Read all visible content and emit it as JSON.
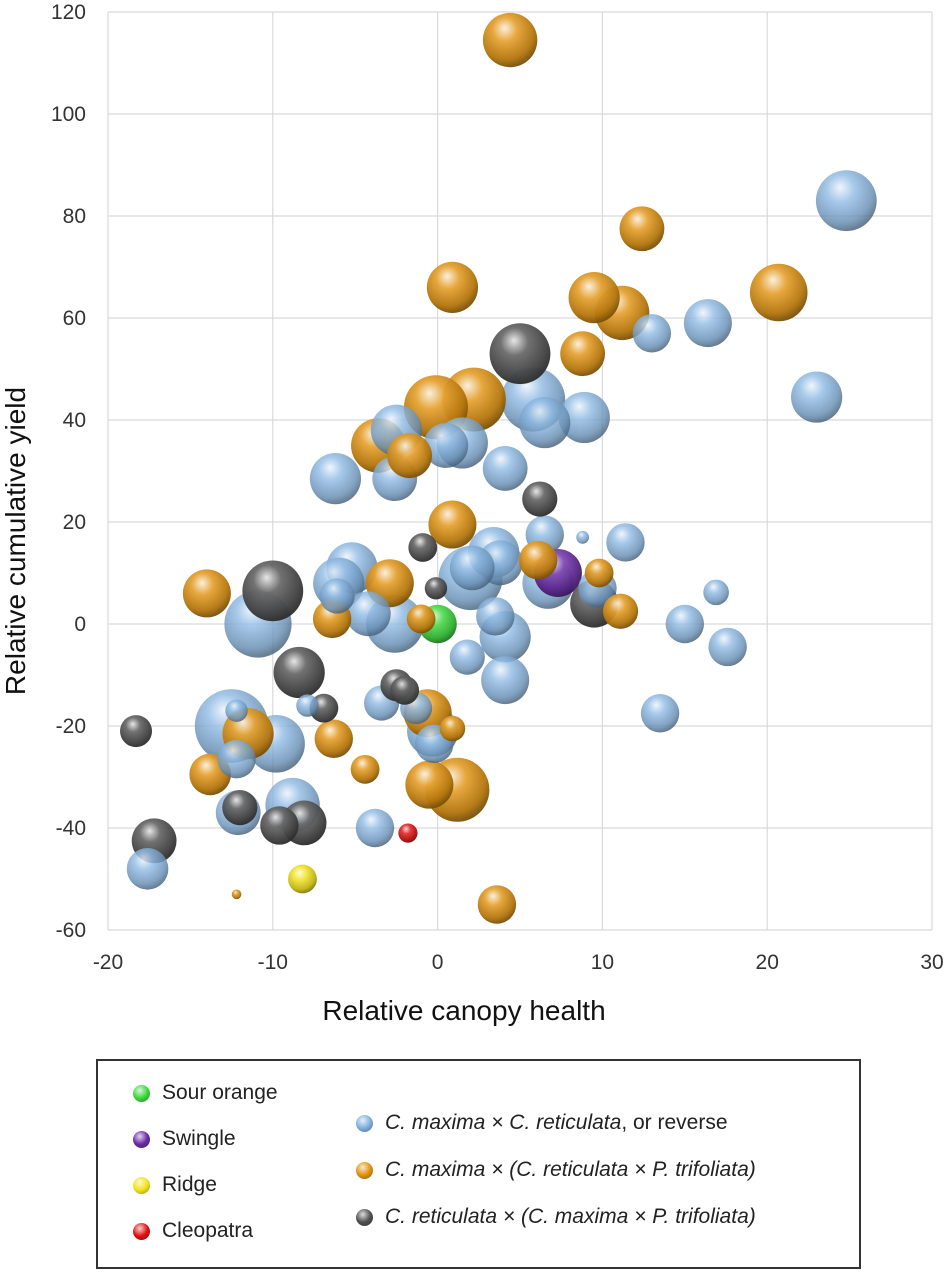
{
  "chart_data": {
    "type": "scatter",
    "variant": "bubble",
    "title": "",
    "xlabel": "Relative canopy health",
    "ylabel": "Relative cumulative yield",
    "xlim": [
      -20,
      30
    ],
    "ylim": [
      -60,
      120
    ],
    "xticks": [
      -20,
      -10,
      0,
      10,
      20,
      30
    ],
    "yticks": [
      -60,
      -40,
      -20,
      0,
      20,
      40,
      60,
      80,
      100,
      120
    ],
    "grid": true,
    "legend_placement": "bottom",
    "series": [
      {
        "name": "Sour orange",
        "color": "#3bd83b",
        "points": [
          {
            "x": 0,
            "y": 0,
            "size": 0.6
          }
        ]
      },
      {
        "name": "Swingle",
        "color": "#6a2aa6",
        "points": [
          {
            "x": 7.3,
            "y": 10,
            "size": 0.75
          }
        ]
      },
      {
        "name": "Ridge",
        "color": "#f2e21a",
        "points": [
          {
            "x": -8.2,
            "y": -50,
            "size": 0.45
          }
        ]
      },
      {
        "name": "Cleopatra",
        "color": "#e01010",
        "points": [
          {
            "x": -1.8,
            "y": -41,
            "size": 0.3
          }
        ]
      },
      {
        "name": "C. maxima × C. reticulata, or reverse",
        "color": "#7fb0e0",
        "points": [
          {
            "x": 24.8,
            "y": 83,
            "size": 0.95
          },
          {
            "x": 23,
            "y": 44.5,
            "size": 0.8
          },
          {
            "x": 16.4,
            "y": 59,
            "size": 0.75
          },
          {
            "x": 13,
            "y": 57,
            "size": 0.6
          },
          {
            "x": 5.8,
            "y": 44,
            "size": 1.0
          },
          {
            "x": 8.9,
            "y": 40.5,
            "size": 0.8
          },
          {
            "x": 6.5,
            "y": 39.5,
            "size": 0.8
          },
          {
            "x": -2.5,
            "y": 38,
            "size": 0.8
          },
          {
            "x": 1.5,
            "y": 35.5,
            "size": 0.8
          },
          {
            "x": 0.5,
            "y": 35,
            "size": 0.7
          },
          {
            "x": -6.2,
            "y": 28.5,
            "size": 0.8
          },
          {
            "x": -2.6,
            "y": 28.5,
            "size": 0.7
          },
          {
            "x": 4.1,
            "y": 30.5,
            "size": 0.7
          },
          {
            "x": 6.5,
            "y": 17.5,
            "size": 0.6
          },
          {
            "x": 11.4,
            "y": 16,
            "size": 0.6
          },
          {
            "x": 8.8,
            "y": 17,
            "size": 0.2
          },
          {
            "x": 3.4,
            "y": 14,
            "size": 0.8
          },
          {
            "x": 3.8,
            "y": 12,
            "size": 0.7
          },
          {
            "x": -5.2,
            "y": 11,
            "size": 0.8
          },
          {
            "x": -6,
            "y": 8,
            "size": 0.8
          },
          {
            "x": 2,
            "y": 9,
            "size": 1.0
          },
          {
            "x": 2.1,
            "y": 11,
            "size": 0.7
          },
          {
            "x": 6.7,
            "y": 8,
            "size": 0.8
          },
          {
            "x": 9.7,
            "y": 7,
            "size": 0.6
          },
          {
            "x": -6.1,
            "y": 5.5,
            "size": 0.55
          },
          {
            "x": -4.2,
            "y": 2,
            "size": 0.7
          },
          {
            "x": -10.9,
            "y": 0,
            "size": 1.05
          },
          {
            "x": -2.6,
            "y": 0,
            "size": 0.9
          },
          {
            "x": 3.5,
            "y": 1.5,
            "size": 0.6
          },
          {
            "x": 4.1,
            "y": -2.5,
            "size": 0.8
          },
          {
            "x": 15,
            "y": 0,
            "size": 0.6
          },
          {
            "x": 16.9,
            "y": 6.2,
            "size": 0.4
          },
          {
            "x": 17.6,
            "y": -4.5,
            "size": 0.6
          },
          {
            "x": 1.8,
            "y": -6.5,
            "size": 0.55
          },
          {
            "x": 4.1,
            "y": -11,
            "size": 0.75
          },
          {
            "x": 13.5,
            "y": -17.5,
            "size": 0.6
          },
          {
            "x": -12.5,
            "y": -20,
            "size": 1.15
          },
          {
            "x": -9.8,
            "y": -23.5,
            "size": 0.9
          },
          {
            "x": -12.2,
            "y": -26.5,
            "size": 0.6
          },
          {
            "x": -12.2,
            "y": -17,
            "size": 0.35
          },
          {
            "x": -7.9,
            "y": -16,
            "size": 0.35
          },
          {
            "x": -3.4,
            "y": -15.5,
            "size": 0.55
          },
          {
            "x": -1.3,
            "y": -16.5,
            "size": 0.5
          },
          {
            "x": -0.3,
            "y": -21,
            "size": 0.8
          },
          {
            "x": -0.2,
            "y": -23.5,
            "size": 0.6
          },
          {
            "x": -8.8,
            "y": -35.5,
            "size": 0.85
          },
          {
            "x": -12.1,
            "y": -37,
            "size": 0.7
          },
          {
            "x": -3.8,
            "y": -40,
            "size": 0.6
          },
          {
            "x": -17.6,
            "y": -48,
            "size": 0.65
          }
        ]
      },
      {
        "name": "C. maxima × (C. reticulata × P. trifoliata)",
        "color": "#e0920f",
        "points": [
          {
            "x": 4.4,
            "y": 114.5,
            "size": 0.85
          },
          {
            "x": 12.4,
            "y": 77.5,
            "size": 0.7
          },
          {
            "x": 0.9,
            "y": 66,
            "size": 0.8
          },
          {
            "x": 20.7,
            "y": 65,
            "size": 0.9
          },
          {
            "x": 9.5,
            "y": 64,
            "size": 0.8
          },
          {
            "x": 11.2,
            "y": 61,
            "size": 0.85
          },
          {
            "x": 8.8,
            "y": 53,
            "size": 0.7
          },
          {
            "x": 2.2,
            "y": 44,
            "size": 1.0
          },
          {
            "x": -0.1,
            "y": 42.5,
            "size": 1.0
          },
          {
            "x": -3.6,
            "y": 35,
            "size": 0.85
          },
          {
            "x": -1.7,
            "y": 33,
            "size": 0.7
          },
          {
            "x": 0.9,
            "y": 19.5,
            "size": 0.75
          },
          {
            "x": 6.1,
            "y": 12.5,
            "size": 0.6
          },
          {
            "x": 9.8,
            "y": 10,
            "size": 0.45
          },
          {
            "x": -14,
            "y": 6,
            "size": 0.75
          },
          {
            "x": -2.9,
            "y": 8,
            "size": 0.75
          },
          {
            "x": -6.4,
            "y": 1,
            "size": 0.6
          },
          {
            "x": -1,
            "y": 1,
            "size": 0.45
          },
          {
            "x": 11.1,
            "y": 2.5,
            "size": 0.55
          },
          {
            "x": -0.6,
            "y": -17.5,
            "size": 0.75
          },
          {
            "x": 0.9,
            "y": -20.5,
            "size": 0.4
          },
          {
            "x": -11.5,
            "y": -21.5,
            "size": 0.8
          },
          {
            "x": -6.3,
            "y": -22.5,
            "size": 0.6
          },
          {
            "x": -4.4,
            "y": -28.5,
            "size": 0.45
          },
          {
            "x": -13.8,
            "y": -29.5,
            "size": 0.65
          },
          {
            "x": 1.2,
            "y": -32.5,
            "size": 1.0
          },
          {
            "x": -0.5,
            "y": -31.5,
            "size": 0.75
          },
          {
            "x": 3.6,
            "y": -55,
            "size": 0.6
          },
          {
            "x": -12.2,
            "y": -53,
            "size": 0.15
          }
        ]
      },
      {
        "name": "C. reticulata × (C. maxima × P. trifoliata)",
        "color": "#505050",
        "points": [
          {
            "x": 5,
            "y": 53,
            "size": 0.95
          },
          {
            "x": 6.2,
            "y": 24.5,
            "size": 0.55
          },
          {
            "x": -0.9,
            "y": 15,
            "size": 0.45
          },
          {
            "x": -0.1,
            "y": 7,
            "size": 0.35
          },
          {
            "x": -10,
            "y": 6.5,
            "size": 0.95
          },
          {
            "x": 9.5,
            "y": 4,
            "size": 0.75
          },
          {
            "x": -8.4,
            "y": -9.5,
            "size": 0.8
          },
          {
            "x": -2.5,
            "y": -12,
            "size": 0.5
          },
          {
            "x": -2,
            "y": -13,
            "size": 0.45
          },
          {
            "x": -6.9,
            "y": -16.5,
            "size": 0.45
          },
          {
            "x": -18.3,
            "y": -21,
            "size": 0.5
          },
          {
            "x": -12,
            "y": -36,
            "size": 0.55
          },
          {
            "x": -9.6,
            "y": -39.5,
            "size": 0.6
          },
          {
            "x": -8.1,
            "y": -39,
            "size": 0.7
          },
          {
            "x": -17.2,
            "y": -42.5,
            "size": 0.7
          }
        ]
      }
    ]
  },
  "legend": {
    "left": [
      {
        "label": "Sour orange",
        "color": "#3bd83b"
      },
      {
        "label": "Swingle",
        "color": "#6a2aa6"
      },
      {
        "label": "Ridge",
        "color": "#f2e21a"
      },
      {
        "label": "Cleopatra",
        "color": "#e01010"
      }
    ],
    "right": [
      {
        "color": "#7fb0e0",
        "italic": "C. maxima × C. reticulata",
        "plain": ", or reverse"
      },
      {
        "color": "#e0920f",
        "italic": "C. maxima × (C. reticulata × P. trifoliata)",
        "plain": ""
      },
      {
        "color": "#505050",
        "italic": "C. reticulata × (C. maxima × P. trifoliata)",
        "plain": ""
      }
    ]
  }
}
